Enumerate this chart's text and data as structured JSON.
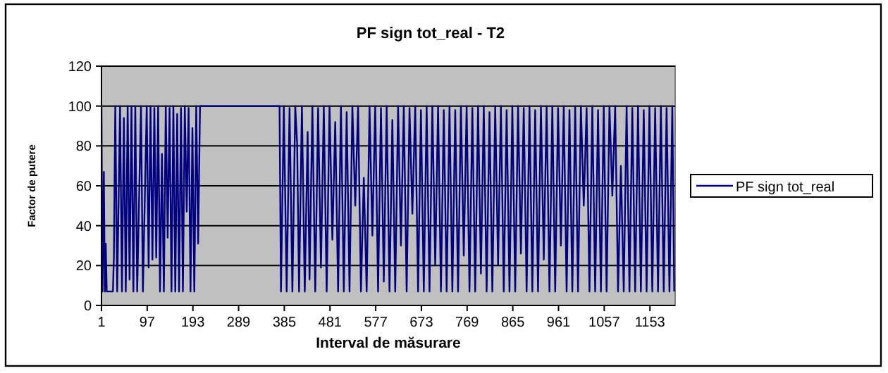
{
  "chart_data": {
    "type": "line",
    "title": "PF sign tot_real - T2",
    "xlabel": "Interval de măsurare",
    "ylabel": "Factor de putere",
    "xlim": [
      1,
      1206
    ],
    "xticks": [
      1,
      97,
      193,
      289,
      385,
      481,
      577,
      673,
      769,
      865,
      961,
      1057,
      1153
    ],
    "ylim": [
      0,
      120
    ],
    "yticks": [
      0,
      20,
      40,
      60,
      80,
      100,
      120
    ],
    "grid": "y",
    "legend": "right",
    "series": [
      {
        "name": "PF  sign tot_real",
        "color": "#000080",
        "x": [
          1,
          3,
          6,
          8,
          10,
          12,
          25,
          27,
          30,
          34,
          40,
          44,
          48,
          52,
          56,
          60,
          64,
          68,
          72,
          76,
          84,
          88,
          96,
          100,
          104,
          108,
          112,
          116,
          120,
          124,
          128,
          132,
          136,
          140,
          144,
          148,
          152,
          156,
          160,
          164,
          168,
          172,
          176,
          180,
          184,
          188,
          192,
          196,
          200,
          204,
          208,
          375,
          378,
          384,
          390,
          396,
          402,
          408,
          412,
          416,
          422,
          428,
          434,
          438,
          444,
          450,
          456,
          462,
          468,
          474,
          480,
          486,
          492,
          498,
          504,
          510,
          516,
          522,
          528,
          534,
          540,
          546,
          552,
          558,
          564,
          570,
          576,
          582,
          588,
          594,
          600,
          606,
          612,
          618,
          624,
          630,
          636,
          642,
          648,
          654,
          660,
          666,
          672,
          678,
          684,
          690,
          696,
          702,
          708,
          714,
          720,
          726,
          732,
          738,
          744,
          750,
          756,
          762,
          768,
          774,
          780,
          786,
          792,
          798,
          804,
          810,
          816,
          822,
          828,
          834,
          840,
          846,
          852,
          858,
          864,
          870,
          876,
          882,
          888,
          894,
          900,
          906,
          912,
          918,
          924,
          930,
          936,
          942,
          948,
          954,
          960,
          966,
          972,
          978,
          984,
          990,
          996,
          1002,
          1008,
          1014,
          1020,
          1026,
          1032,
          1038,
          1044,
          1050,
          1056,
          1062,
          1068,
          1074,
          1080,
          1086,
          1092,
          1098,
          1104,
          1110,
          1116,
          1122,
          1128,
          1134,
          1140,
          1146,
          1152,
          1158,
          1164,
          1170,
          1176,
          1182,
          1188,
          1194,
          1200,
          1204
        ],
        "values": [
          100,
          7,
          67,
          7,
          31,
          7,
          7,
          24,
          100,
          7,
          100,
          7,
          94,
          7,
          100,
          13,
          100,
          7,
          100,
          7,
          100,
          7,
          100,
          19,
          100,
          23,
          99,
          24,
          100,
          7,
          76,
          7,
          100,
          34,
          99,
          7,
          100,
          7,
          96,
          7,
          99,
          7,
          100,
          47,
          99,
          7,
          89,
          7,
          100,
          31,
          100,
          100,
          7,
          100,
          7,
          99,
          7,
          100,
          81,
          7,
          100,
          7,
          87,
          13,
          100,
          7,
          99,
          19,
          100,
          7,
          100,
          33,
          92,
          7,
          100,
          7,
          97,
          7,
          100,
          50,
          100,
          7,
          64,
          7,
          100,
          35,
          100,
          7,
          99,
          12,
          100,
          7,
          93,
          7,
          100,
          30,
          100,
          7,
          99,
          46,
          100,
          7,
          98,
          7,
          100,
          7,
          100,
          20,
          100,
          7,
          98,
          7,
          100,
          7,
          98,
          7,
          100,
          25,
          100,
          7,
          99,
          7,
          100,
          16,
          100,
          7,
          97,
          7,
          100,
          20,
          100,
          7,
          98,
          7,
          100,
          7,
          100,
          26,
          99,
          7,
          100,
          7,
          98,
          7,
          100,
          23,
          100,
          7,
          100,
          7,
          99,
          30,
          100,
          7,
          98,
          7,
          100,
          7,
          100,
          50,
          99,
          7,
          100,
          7,
          98,
          7,
          100,
          7,
          100,
          55,
          100,
          7,
          70,
          7,
          100,
          7,
          99,
          7,
          100,
          7,
          98,
          7,
          100,
          7,
          99,
          7,
          100,
          7,
          99,
          7,
          100,
          7
        ]
      }
    ]
  }
}
